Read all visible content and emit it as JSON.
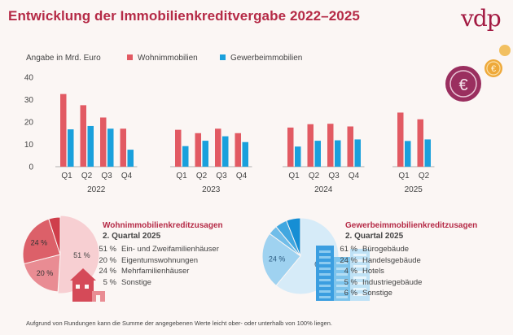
{
  "header": {
    "title": "Entwicklung der Immobilienkreditvergabe 2022–2025",
    "logo": "vdp"
  },
  "unit_label": "Angabe in Mrd. Euro",
  "colors": {
    "title": "#b52a46",
    "wohn": "#e25a63",
    "gewerbe": "#1aa0dc",
    "coin": "#9a2f5f",
    "gold": "#eea93a"
  },
  "icons": [
    "euro-coin-icon",
    "gold-coin-icon",
    "house-icon",
    "office-buildings-icon"
  ],
  "chart_data": [
    {
      "type": "bar",
      "title": "Entwicklung der Immobilienkreditvergabe 2022–2025",
      "ylabel": "Angabe in Mrd. Euro",
      "ylim": [
        0,
        40
      ],
      "yticks": [
        0,
        10,
        20,
        30,
        40
      ],
      "grid": false,
      "legend_position": "top",
      "groups": [
        {
          "label": "2022",
          "quarters": [
            "Q1",
            "Q2",
            "Q3",
            "Q4"
          ]
        },
        {
          "label": "2023",
          "quarters": [
            "Q1",
            "Q2",
            "Q3",
            "Q4"
          ]
        },
        {
          "label": "2024",
          "quarters": [
            "Q1",
            "Q2",
            "Q3",
            "Q4"
          ]
        },
        {
          "label": "2025",
          "quarters": [
            "Q1",
            "Q2"
          ]
        }
      ],
      "series": [
        {
          "name": "Wohnimmobilien",
          "color": "#e25a63",
          "values": [
            32.5,
            27.5,
            22,
            17,
            16.5,
            15,
            17,
            15,
            17.5,
            19,
            19.2,
            18,
            24.2,
            21.2
          ]
        },
        {
          "name": "Gewerbeimmobilien",
          "color": "#1aa0dc",
          "values": [
            16.7,
            18.2,
            17,
            7.6,
            9.2,
            11.6,
            13.6,
            11,
            9,
            11.6,
            11.8,
            12.2,
            11.5,
            12.2
          ]
        }
      ]
    },
    {
      "type": "pie",
      "title": "Wohnimmobilienkreditzusagen",
      "subtitle": "2. Quartal 2025",
      "slices": [
        {
          "label": "Ein- und Zweifamilienhäuser",
          "value": 51,
          "value_text": "51 %"
        },
        {
          "label": "Eigentumswohnungen",
          "value": 20,
          "value_text": "20 %"
        },
        {
          "label": "Mehrfamilienhäuser",
          "value": 24,
          "value_text": "24 %"
        },
        {
          "label": "Sonstige",
          "value": 5,
          "value_text": "5 %"
        }
      ],
      "colors": [
        "#f7cfd2",
        "#e98c93",
        "#dc6069",
        "#cf3e4b"
      ]
    },
    {
      "type": "pie",
      "title": "Gewerbeimmobilienkreditzusagen",
      "subtitle": "2. Quartal 2025",
      "slices": [
        {
          "label": "Bürogebäude",
          "value": 61,
          "value_text": "61 %"
        },
        {
          "label": "Handelsgebäude",
          "value": 24,
          "value_text": "24 %"
        },
        {
          "label": "Hotels",
          "value": 4,
          "value_text": "4 %"
        },
        {
          "label": "Industriegebäude",
          "value": 5,
          "value_text": "5 %"
        },
        {
          "label": "Sonstige",
          "value": 6,
          "value_text": "6 %"
        }
      ],
      "colors": [
        "#d6ebf8",
        "#9fd2f0",
        "#70bde9",
        "#41a7e0",
        "#168ed4"
      ]
    }
  ],
  "footnote": "Aufgrund von Rundungen kann die Summe der angegebenen Werte leicht ober- oder unterhalb von 100% liegen."
}
